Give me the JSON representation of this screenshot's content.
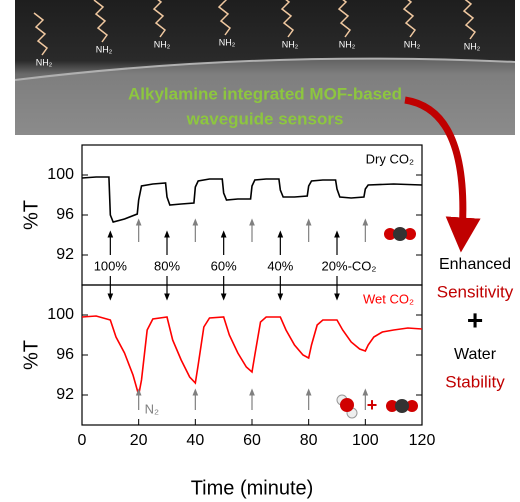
{
  "header": {
    "title_lines": [
      "Alkylamine integrated MOF-based",
      "waveguide sensors"
    ],
    "labels": [
      "NH₂",
      "NH₂",
      "NH₂",
      "NH₂",
      "NH₂",
      "NH₂",
      "NH₂",
      "NH₂"
    ]
  },
  "side_text": [
    "Enhanced",
    "Sensitivity",
    "+",
    "Water",
    "Stability"
  ],
  "chart_data": [
    {
      "type": "line",
      "legend": "Dry CO₂",
      "color": "#000000",
      "ylabel": "%T",
      "x": [
        0,
        5,
        9.5,
        10,
        11,
        15,
        19.5,
        20,
        21,
        25,
        29.5,
        30,
        31,
        35,
        39.5,
        40,
        41,
        45,
        49.5,
        50,
        51,
        55,
        59.5,
        60,
        61,
        65,
        69.5,
        70,
        71,
        75,
        79.5,
        80,
        81,
        85,
        89.5,
        90,
        91,
        95,
        99.5,
        100,
        101,
        110,
        120
      ],
      "values": [
        99.7,
        99.8,
        99.8,
        96,
        95.3,
        95.6,
        96.1,
        97.5,
        98.9,
        99.1,
        99.2,
        97.8,
        97.0,
        97.1,
        97.2,
        98.8,
        99.4,
        99.6,
        99.6,
        98.2,
        97.5,
        97.6,
        97.6,
        98.9,
        99.5,
        99.6,
        99.6,
        98.5,
        97.8,
        97.8,
        97.9,
        98.9,
        99.4,
        99.5,
        99.5,
        98.6,
        97.8,
        97.7,
        97.8,
        98.6,
        99.0,
        99.1,
        99.0
      ],
      "xlim": [
        0,
        120
      ],
      "ylim": [
        89,
        103
      ],
      "yticks": [
        92,
        96,
        100
      ],
      "events": [
        {
          "label": "100%",
          "x": 10
        },
        {
          "label": "80%",
          "x": 30
        },
        {
          "label": "60%",
          "x": 50
        },
        {
          "label": "40%",
          "x": 70
        },
        {
          "label": "20%-CO₂",
          "x": 90
        }
      ],
      "recovery_x": [
        20,
        40,
        60,
        80,
        100
      ]
    },
    {
      "type": "line",
      "legend": "Wet CO₂",
      "color": "#ff0000",
      "ylabel": "%T",
      "xlabel": "Time (minute)",
      "x": [
        0,
        5,
        10,
        12,
        15,
        18,
        20,
        21,
        23,
        25,
        30,
        32,
        35,
        38,
        40,
        41,
        43,
        45,
        50,
        52,
        55,
        58,
        60,
        61,
        63,
        65,
        70,
        72,
        75,
        78,
        80,
        81,
        83,
        85,
        90,
        92,
        95,
        98,
        100,
        101,
        103,
        106,
        110,
        115,
        120
      ],
      "values": [
        99.8,
        99.9,
        99.5,
        97.8,
        96.2,
        94.0,
        92.0,
        93.5,
        98.5,
        99.6,
        99.8,
        97.5,
        95.5,
        93.8,
        93.2,
        95,
        98.8,
        99.7,
        99.8,
        98.0,
        96.2,
        94.8,
        94.3,
        96,
        99.3,
        99.8,
        99.8,
        98.5,
        97.0,
        96.0,
        95.7,
        97,
        99.0,
        99.5,
        99.5,
        98.5,
        97.3,
        96.6,
        96.4,
        97,
        97.8,
        98.3,
        98.5,
        98.7,
        98.6
      ],
      "xlim": [
        0,
        120
      ],
      "ylim": [
        89,
        103
      ],
      "yticks": [
        92,
        96,
        100
      ],
      "xticks": [
        0,
        20,
        40,
        60,
        80,
        100,
        120
      ],
      "event_x": [
        10,
        30,
        50,
        70,
        90
      ],
      "recovery_x": [
        20,
        40,
        60,
        80,
        100
      ],
      "recovery_label": "N₂"
    }
  ]
}
